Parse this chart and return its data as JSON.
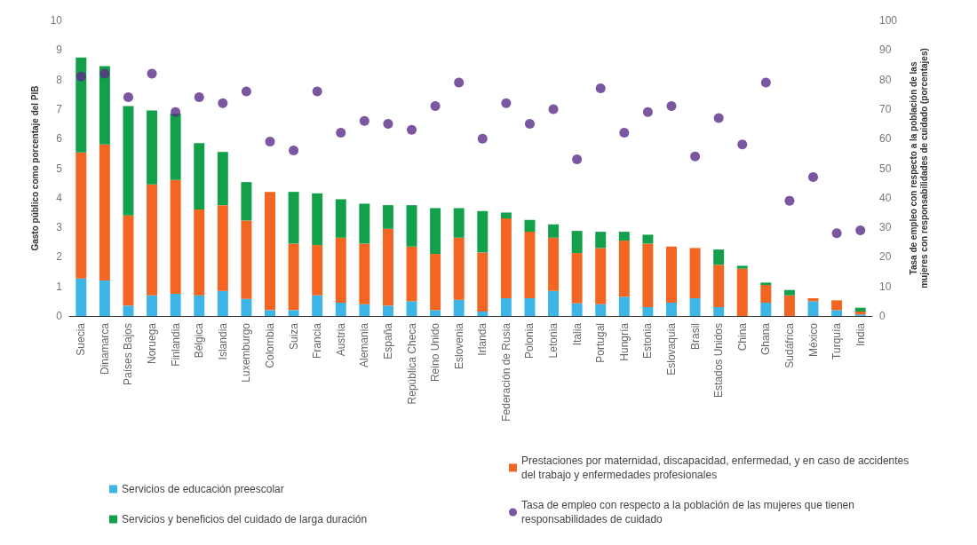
{
  "chart_data": {
    "type": "bar",
    "stacked": true,
    "ylabel": "Gasto público como porcentaje del PIB",
    "y2label": "Tasa de empleo con respecto a la población de las mujeres con responsabilidades de cuidado (porcentajes)",
    "categories": [
      "Suecia",
      "Dinamarca",
      "Países Bajos",
      "Noruega",
      "Finlandia",
      "Bélgica",
      "Islandia",
      "Luxemburgo",
      "Colombia",
      "Suiza",
      "Francia",
      "Austria",
      "Alemania",
      "España",
      "República Checa",
      "Reino Unido",
      "Eslovenia",
      "Irlanda",
      "Federación de Rusia",
      "Polonia",
      "Letonia",
      "Italia",
      "Portugal",
      "Hungría",
      "Estonia",
      "Eslovaquia",
      "Brasil",
      "Estados Unidos",
      "China",
      "Ghana",
      "Sudáfrica",
      "México",
      "Turquía",
      "India"
    ],
    "series": [
      {
        "name": "Servicios de educación preescolar",
        "color": "#3db5e6",
        "values": [
          1.27,
          1.2,
          0.35,
          0.7,
          0.75,
          0.7,
          0.85,
          0.58,
          0.2,
          0.2,
          0.7,
          0.45,
          0.4,
          0.35,
          0.5,
          0.2,
          0.55,
          0.15,
          0.6,
          0.6,
          0.85,
          0.43,
          0.4,
          0.65,
          0.3,
          0.45,
          0.6,
          0.3,
          0,
          0.45,
          0,
          0.5,
          0.2,
          0.05
        ]
      },
      {
        "name": "Prestaciones por maternidad, discapacidad, enfermedad, y en caso de accidentes del trabajo y enfermedades profesionales",
        "color": "#f26522",
        "values": [
          4.26,
          4.6,
          3.05,
          3.75,
          3.85,
          2.9,
          2.9,
          2.65,
          4.0,
          2.25,
          1.7,
          2.2,
          2.05,
          2.6,
          1.85,
          1.9,
          2.1,
          2.0,
          2.7,
          2.25,
          1.8,
          1.7,
          1.9,
          1.9,
          2.15,
          1.9,
          1.7,
          1.43,
          1.6,
          0.6,
          0.7,
          0.1,
          0.33,
          0.1
        ]
      },
      {
        "name": "Servicios y beneficios del cuidado de larga duración",
        "color": "#13a04b",
        "values": [
          3.22,
          2.65,
          3.7,
          2.5,
          2.25,
          2.25,
          1.8,
          1.3,
          0,
          1.75,
          1.75,
          1.3,
          1.35,
          0.8,
          1.4,
          1.55,
          1.0,
          1.4,
          0.2,
          0.4,
          0.45,
          0.75,
          0.55,
          0.3,
          0.3,
          0,
          0,
          0.52,
          0.1,
          0.08,
          0.18,
          0,
          0,
          0.13
        ]
      },
      {
        "name": "Tasa de empleo con respecto a la población de las mujeres que tienen responsabilidades de cuidado",
        "type": "scatter",
        "axis": "y2",
        "marker": "circle",
        "color": "#5b2d8a",
        "values": [
          81,
          82,
          74,
          82,
          69,
          74,
          72,
          76,
          59,
          56,
          76,
          62,
          66,
          65,
          63,
          71,
          79,
          60,
          72,
          65,
          70,
          53,
          77,
          62,
          69,
          71,
          54,
          67,
          58,
          79,
          39,
          47,
          28,
          29
        ]
      }
    ],
    "ylim": [
      0,
      10
    ],
    "yticks": [
      0,
      1,
      2,
      3,
      4,
      5,
      6,
      7,
      8,
      9,
      10
    ],
    "y2lim": [
      0,
      100
    ],
    "y2ticks": [
      0,
      10,
      20,
      30,
      40,
      50,
      60,
      70,
      80,
      90,
      100
    ],
    "grid": false,
    "legend": "bottom"
  }
}
